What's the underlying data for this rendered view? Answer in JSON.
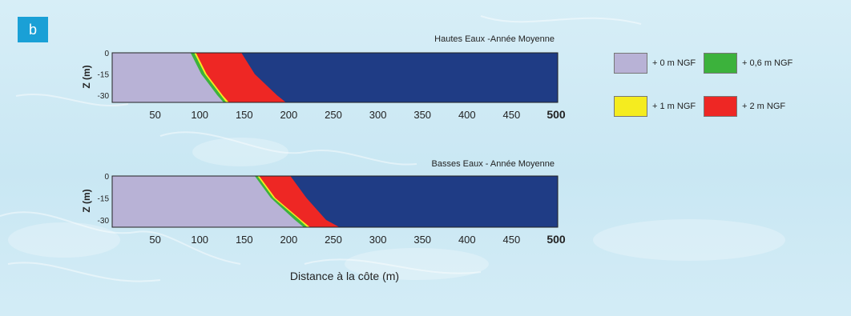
{
  "panel_label": "b",
  "legend": [
    {
      "label": "+ 0 m NGF",
      "color": "#b8b2d6"
    },
    {
      "label": "+ 0,6 m NGF",
      "color": "#3cb23c"
    },
    {
      "label": "+ 1 m NGF",
      "color": "#f5ec1f"
    },
    {
      "label": "+ 2 m NGF",
      "color": "#ee2724"
    }
  ],
  "sea_color": "#1f3c85",
  "chart_data": [
    {
      "type": "area",
      "title": "Hautes Eaux -Année Moyenne",
      "ylabel": "Z (m)",
      "xlabel": "",
      "x_ticks": [
        "50",
        "100",
        "150",
        "200",
        "250",
        "300",
        "350",
        "400",
        "450",
        "500"
      ],
      "y_ticks": [
        "0",
        "-15",
        "-30"
      ],
      "xlim": [
        0,
        500
      ],
      "ylim": [
        -35,
        0
      ],
      "boundaries_x_at_depth": {
        "depth": [
          0,
          -15,
          -30,
          -35
        ],
        "+ 0 m NGF": [
          88,
          100,
          118,
          125
        ],
        "+ 0,6 m NGF": [
          92,
          104,
          122,
          128
        ],
        "+ 1 m NGF": [
          94,
          106,
          124,
          131
        ],
        "+ 2 m NGF": [
          145,
          160,
          185,
          195
        ]
      }
    },
    {
      "type": "area",
      "title": "Basses Eaux - Année Moyenne",
      "ylabel": "Z (m)",
      "xlabel": "Distance à la côte (m)",
      "x_ticks": [
        "50",
        "100",
        "150",
        "200",
        "250",
        "300",
        "350",
        "400",
        "450",
        "500"
      ],
      "y_ticks": [
        "0",
        "-15",
        "-30"
      ],
      "xlim": [
        0,
        500
      ],
      "ylim": [
        -35,
        0
      ],
      "boundaries_x_at_depth": {
        "depth": [
          0,
          -15,
          -30,
          -35
        ],
        "+ 0 m NGF": [
          160,
          178,
          205,
          215
        ],
        "+ 0,6 m NGF": [
          163,
          181,
          210,
          219
        ],
        "+ 1 m NGF": [
          165,
          183,
          212,
          222
        ],
        "+ 2 m NGF": [
          200,
          218,
          240,
          255
        ]
      }
    }
  ]
}
